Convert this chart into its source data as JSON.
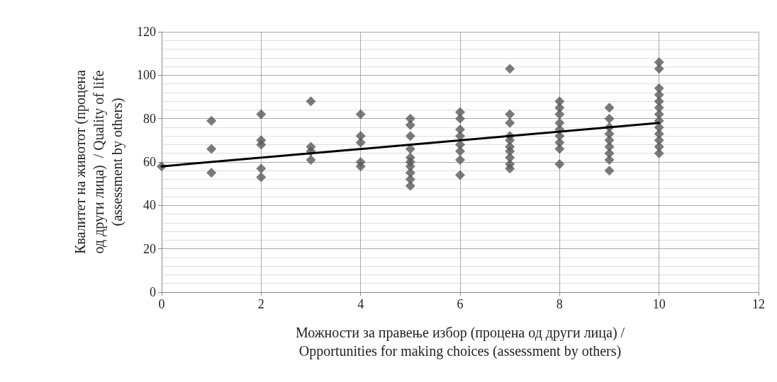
{
  "chart_data": {
    "type": "scatter",
    "xlabel": "Можности за правење избор (процена од други лица) /\nOpportunities for making choices (assessment by others)",
    "ylabel": "Квалитет на животот (процена\nод други лица)  / Quality of life\n(assessment by others)",
    "xlim": [
      0,
      12
    ],
    "xticks": [
      0,
      2,
      4,
      6,
      8,
      10,
      12
    ],
    "ylim": [
      0,
      120
    ],
    "yticks": [
      0,
      20,
      40,
      60,
      80,
      100,
      120
    ],
    "grid": true,
    "marker": "diamond",
    "series": [
      {
        "color": "#595959",
        "x": [
          0,
          1,
          1,
          1,
          2,
          2,
          2,
          2,
          2,
          3,
          3,
          3,
          3,
          4,
          4,
          4,
          4,
          4,
          5,
          5,
          5,
          5,
          5,
          5,
          5,
          5,
          5,
          5,
          6,
          6,
          6,
          6,
          6,
          6,
          6,
          6,
          7,
          7,
          7,
          7,
          7,
          7,
          7,
          7,
          7,
          7,
          8,
          8,
          8,
          8,
          8,
          8,
          8,
          8,
          8,
          9,
          9,
          9,
          9,
          9,
          9,
          9,
          9,
          9,
          10,
          10,
          10,
          10,
          10,
          10,
          10,
          10,
          10,
          10,
          10,
          10,
          10
        ],
        "values": [
          58,
          79,
          66,
          55,
          82,
          70,
          68,
          57,
          53,
          88,
          67,
          65,
          61,
          82,
          72,
          69,
          60,
          58,
          80,
          77,
          72,
          66,
          62,
          60,
          58,
          55,
          52,
          49,
          83,
          80,
          75,
          72,
          68,
          65,
          61,
          54,
          103,
          82,
          78,
          72,
          70,
          67,
          65,
          62,
          59,
          57,
          88,
          85,
          82,
          78,
          75,
          72,
          69,
          66,
          59,
          85,
          80,
          76,
          73,
          70,
          67,
          64,
          61,
          56,
          106,
          103,
          94,
          91,
          88,
          85,
          82,
          79,
          76,
          73,
          70,
          67,
          64
        ]
      },
      {
        "type": "line",
        "color": "#000000",
        "x": [
          0,
          10
        ],
        "values": [
          58,
          78
        ],
        "marker": "none"
      }
    ]
  }
}
